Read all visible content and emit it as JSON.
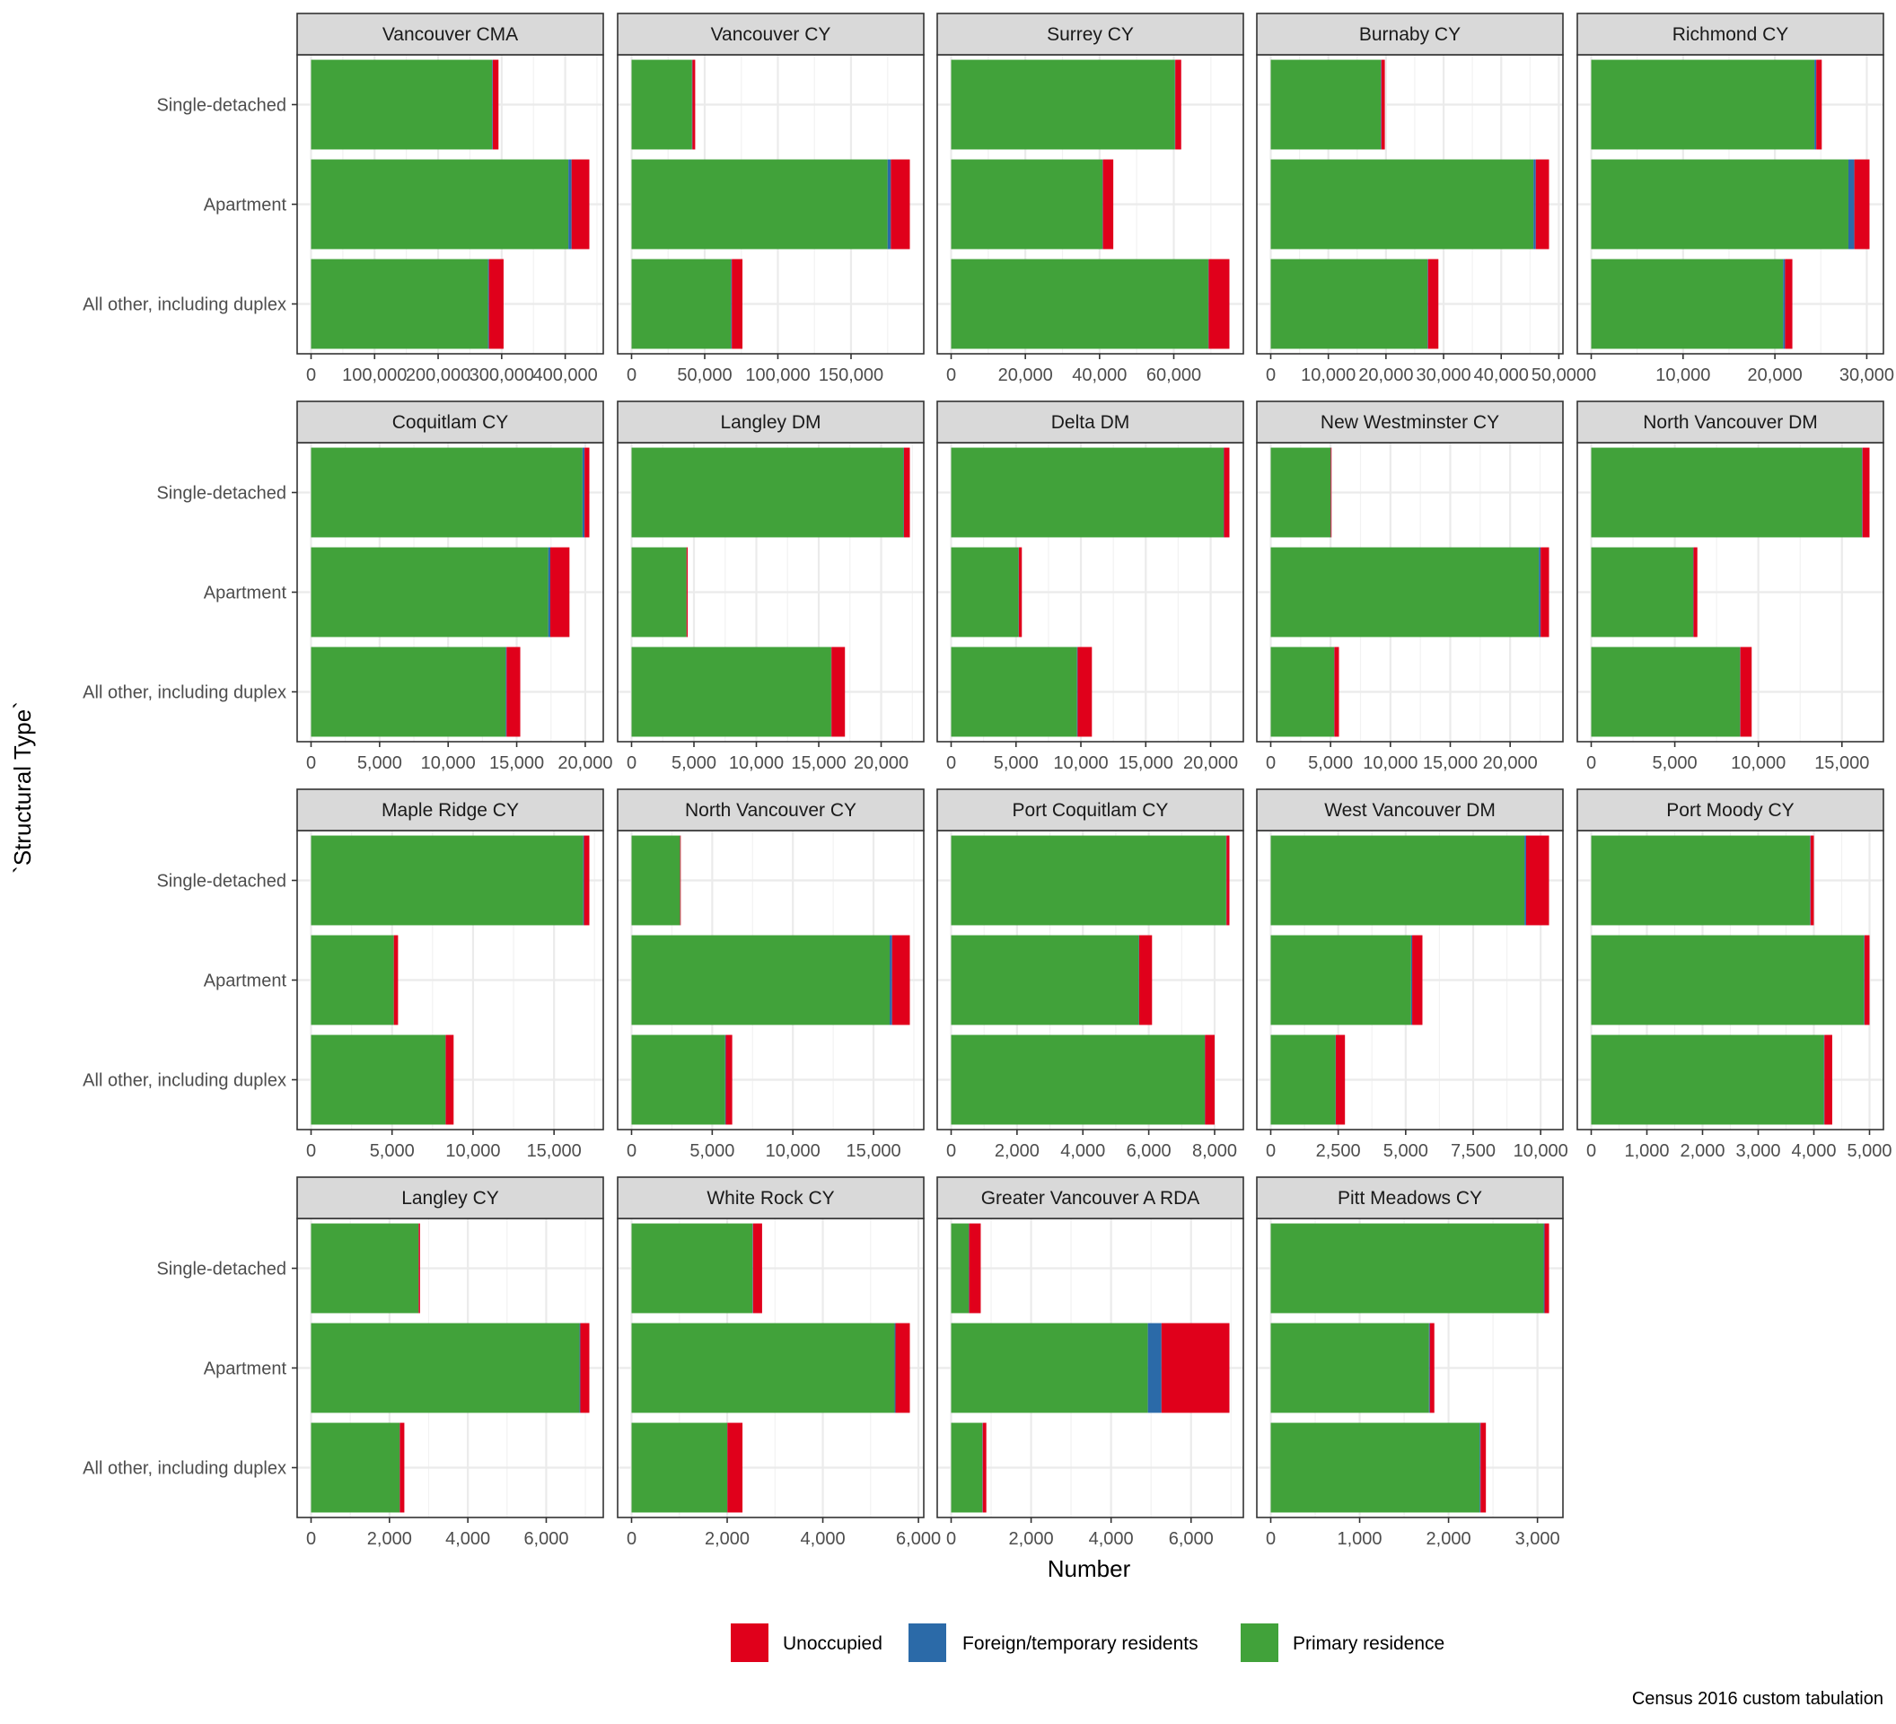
{
  "chart_data": {
    "type": "bar",
    "orientation": "horizontal",
    "stacked": true,
    "faceted": true,
    "facet_columns": 5,
    "xlabel": "Number",
    "ylabel": "`Structural Type`",
    "caption": "Census 2016 custom tabulation",
    "legend_position": "bottom",
    "grid": true,
    "categories": [
      "Single-detached",
      "Apartment",
      "All other, including duplex"
    ],
    "series": [
      {
        "key": "unoccupied",
        "name": "Unoccupied",
        "color": "#E0001B"
      },
      {
        "key": "foreign",
        "name": "Foreign/temporary residents",
        "color": "#2B6AA8"
      },
      {
        "key": "primary",
        "name": "Primary residence",
        "color": "#41A23A"
      }
    ],
    "stack_order": [
      "primary",
      "foreign",
      "unoccupied"
    ],
    "panels": [
      {
        "title": "Vancouver CMA",
        "xticks": [
          0,
          100000,
          200000,
          300000,
          400000
        ],
        "tick_labels": [
          "0",
          "100,000",
          "200,000",
          "300,000",
          "400,000"
        ],
        "primary": [
          285000,
          405000,
          278500
        ],
        "foreign": [
          1000,
          5000,
          1500
        ],
        "unoccupied": [
          9000,
          28000,
          23000
        ]
      },
      {
        "title": "Vancouver CY",
        "xticks": [
          0,
          50000,
          100000,
          150000
        ],
        "tick_labels": [
          "0",
          "50,000",
          "100,000",
          "150,000"
        ],
        "primary": [
          41300,
          175000,
          68000
        ],
        "foreign": [
          300,
          2200,
          500
        ],
        "unoccupied": [
          1900,
          13000,
          7300
        ]
      },
      {
        "title": "Surrey CY",
        "xticks": [
          0,
          20000,
          40000,
          60000
        ],
        "tick_labels": [
          "0",
          "20,000",
          "40,000",
          "60,000"
        ],
        "primary": [
          60300,
          40800,
          69300
        ],
        "foreign": [
          100,
          100,
          100
        ],
        "unoccupied": [
          1600,
          2800,
          5600
        ]
      },
      {
        "title": "Burnaby CY",
        "xticks": [
          0,
          10000,
          20000,
          30000,
          40000,
          50000
        ],
        "tick_labels": [
          "0",
          "10,000",
          "20,000",
          "30,000",
          "40,000",
          "50,000"
        ],
        "primary": [
          19100,
          45600,
          27200
        ],
        "foreign": [
          100,
          400,
          100
        ],
        "unoccupied": [
          600,
          2300,
          1800
        ]
      },
      {
        "title": "Richmond CY",
        "xticks": [
          0,
          10000,
          20000,
          30000
        ],
        "tick_labels": [
          "0",
          "10,000",
          "20,000",
          "30,000"
        ],
        "primary": [
          24300,
          28000,
          20900
        ],
        "foreign": [
          200,
          650,
          200
        ],
        "unoccupied": [
          600,
          1650,
          800
        ]
      },
      {
        "title": "Coquitlam CY",
        "xticks": [
          0,
          5000,
          10000,
          15000,
          20000
        ],
        "tick_labels": [
          "0",
          "5,000",
          "10,000",
          "15,000",
          "20,000"
        ],
        "primary": [
          19800,
          17300,
          14200
        ],
        "foreign": [
          150,
          150,
          60
        ],
        "unoccupied": [
          350,
          1400,
          1000
        ]
      },
      {
        "title": "Langley DM",
        "xticks": [
          0,
          5000,
          10000,
          15000,
          20000
        ],
        "tick_labels": [
          "0",
          "5,000",
          "10,000",
          "15,000",
          "20,000"
        ],
        "primary": [
          21800,
          4400,
          16000
        ],
        "foreign": [
          30,
          10,
          20
        ],
        "unoccupied": [
          470,
          90,
          1080
        ]
      },
      {
        "title": "Delta DM",
        "xticks": [
          0,
          5000,
          10000,
          15000,
          20000
        ],
        "tick_labels": [
          "0",
          "5,000",
          "10,000",
          "15,000",
          "20,000"
        ],
        "primary": [
          21000,
          5200,
          9700
        ],
        "foreign": [
          30,
          20,
          50
        ],
        "unoccupied": [
          420,
          230,
          1100
        ]
      },
      {
        "title": "New Westminster CY",
        "xticks": [
          0,
          5000,
          10000,
          15000,
          20000
        ],
        "tick_labels": [
          "0",
          "5,000",
          "10,000",
          "15,000",
          "20,000"
        ],
        "primary": [
          5000,
          22400,
          5300
        ],
        "foreign": [
          20,
          150,
          20
        ],
        "unoccupied": [
          60,
          700,
          380
        ]
      },
      {
        "title": "North Vancouver DM",
        "xticks": [
          0,
          5000,
          10000,
          15000
        ],
        "tick_labels": [
          "0",
          "5,000",
          "10,000",
          "15,000"
        ],
        "primary": [
          16200,
          6100,
          8900
        ],
        "foreign": [
          30,
          20,
          20
        ],
        "unoccupied": [
          420,
          230,
          680
        ]
      },
      {
        "title": "Maple Ridge CY",
        "xticks": [
          0,
          5000,
          10000,
          15000
        ],
        "tick_labels": [
          "0",
          "5,000",
          "10,000",
          "15,000"
        ],
        "primary": [
          16800,
          5100,
          8300
        ],
        "foreign": [
          50,
          10,
          10
        ],
        "unoccupied": [
          330,
          260,
          490
        ]
      },
      {
        "title": "North Vancouver CY",
        "xticks": [
          0,
          5000,
          10000,
          15000
        ],
        "tick_labels": [
          "0",
          "5,000",
          "10,000",
          "15,000"
        ],
        "primary": [
          3000,
          16000,
          5800
        ],
        "foreign": [
          10,
          150,
          40
        ],
        "unoccupied": [
          40,
          1100,
          400
        ]
      },
      {
        "title": "Port Coquitlam CY",
        "xticks": [
          0,
          2000,
          4000,
          6000,
          8000
        ],
        "tick_labels": [
          "0",
          "2,000",
          "4,000",
          "6,000",
          "8,000"
        ],
        "primary": [
          8350,
          5700,
          7700
        ],
        "foreign": [
          10,
          10,
          10
        ],
        "unoccupied": [
          90,
          390,
          290
        ]
      },
      {
        "title": "West Vancouver DM",
        "xticks": [
          0,
          2500,
          5000,
          7500,
          10000
        ],
        "tick_labels": [
          "0",
          "2,500",
          "5,000",
          "7,500",
          "10,000"
        ],
        "primary": [
          9400,
          5200,
          2400
        ],
        "foreign": [
          60,
          40,
          10
        ],
        "unoccupied": [
          850,
          380,
          340
        ]
      },
      {
        "title": "Port Moody CY",
        "xticks": [
          0,
          1000,
          2000,
          3000,
          4000,
          5000
        ],
        "tick_labels": [
          "0",
          "1,000",
          "2,000",
          "3,000",
          "4,000",
          "5,000"
        ],
        "primary": [
          3930,
          4900,
          4180
        ],
        "foreign": [
          10,
          10,
          10
        ],
        "unoccupied": [
          60,
          90,
          140
        ]
      },
      {
        "title": "Langley CY",
        "xticks": [
          0,
          2000,
          4000,
          6000
        ],
        "tick_labels": [
          "0",
          "2,000",
          "4,000",
          "6,000"
        ],
        "primary": [
          2740,
          6850,
          2260
        ],
        "foreign": [
          5,
          20,
          5
        ],
        "unoccupied": [
          35,
          230,
          115
        ]
      },
      {
        "title": "White Rock CY",
        "xticks": [
          0,
          2000,
          4000,
          6000
        ],
        "tick_labels": [
          "0",
          "2,000",
          "4,000",
          "6,000"
        ],
        "primary": [
          2530,
          5500,
          2000
        ],
        "foreign": [
          10,
          20,
          5
        ],
        "unoccupied": [
          190,
          300,
          315
        ]
      },
      {
        "title": "Greater Vancouver A RDA",
        "xticks": [
          0,
          2000,
          4000,
          6000
        ],
        "tick_labels": [
          "0",
          "2,000",
          "4,000",
          "6,000"
        ],
        "primary": [
          440,
          4920,
          780
        ],
        "foreign": [
          10,
          340,
          10
        ],
        "unoccupied": [
          290,
          1700,
          90
        ]
      },
      {
        "title": "Pitt Meadows CY",
        "xticks": [
          0,
          1000,
          2000,
          3000
        ],
        "tick_labels": [
          "0",
          "1,000",
          "2,000",
          "3,000"
        ],
        "primary": [
          3070,
          1780,
          2350
        ],
        "foreign": [
          10,
          10,
          10
        ],
        "unoccupied": [
          50,
          50,
          60
        ]
      }
    ]
  }
}
